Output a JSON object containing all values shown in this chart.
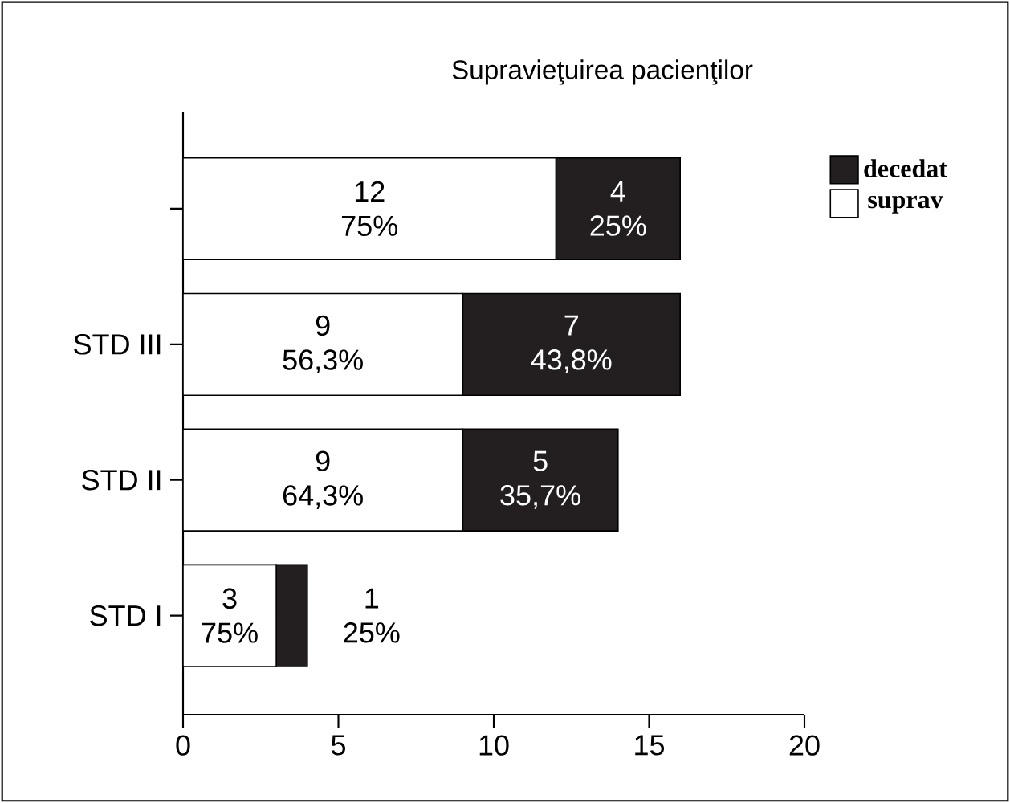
{
  "chart_data": {
    "type": "bar",
    "orientation": "horizontal",
    "stacked": true,
    "title": "Supravieţuirea pacienţilor",
    "categories": [
      null,
      "STD III",
      "STD II",
      "STD I"
    ],
    "series": [
      {
        "name": "suprav",
        "color": "#ffffff",
        "values": [
          12,
          9,
          9,
          3
        ],
        "value_labels": [
          "12 75%",
          "9 56,3%",
          "9 64,3%",
          "3 75%"
        ]
      },
      {
        "name": "decedat",
        "color": "#231f20",
        "values": [
          4,
          7,
          5,
          1
        ],
        "value_labels": [
          "4 25%",
          "7 43,8%",
          "5 35,7%",
          "1 25%"
        ]
      }
    ],
    "xlim": [
      0,
      20
    ],
    "xticks": [
      0,
      5,
      10,
      15,
      20
    ],
    "grid": false,
    "legend": "top right"
  }
}
